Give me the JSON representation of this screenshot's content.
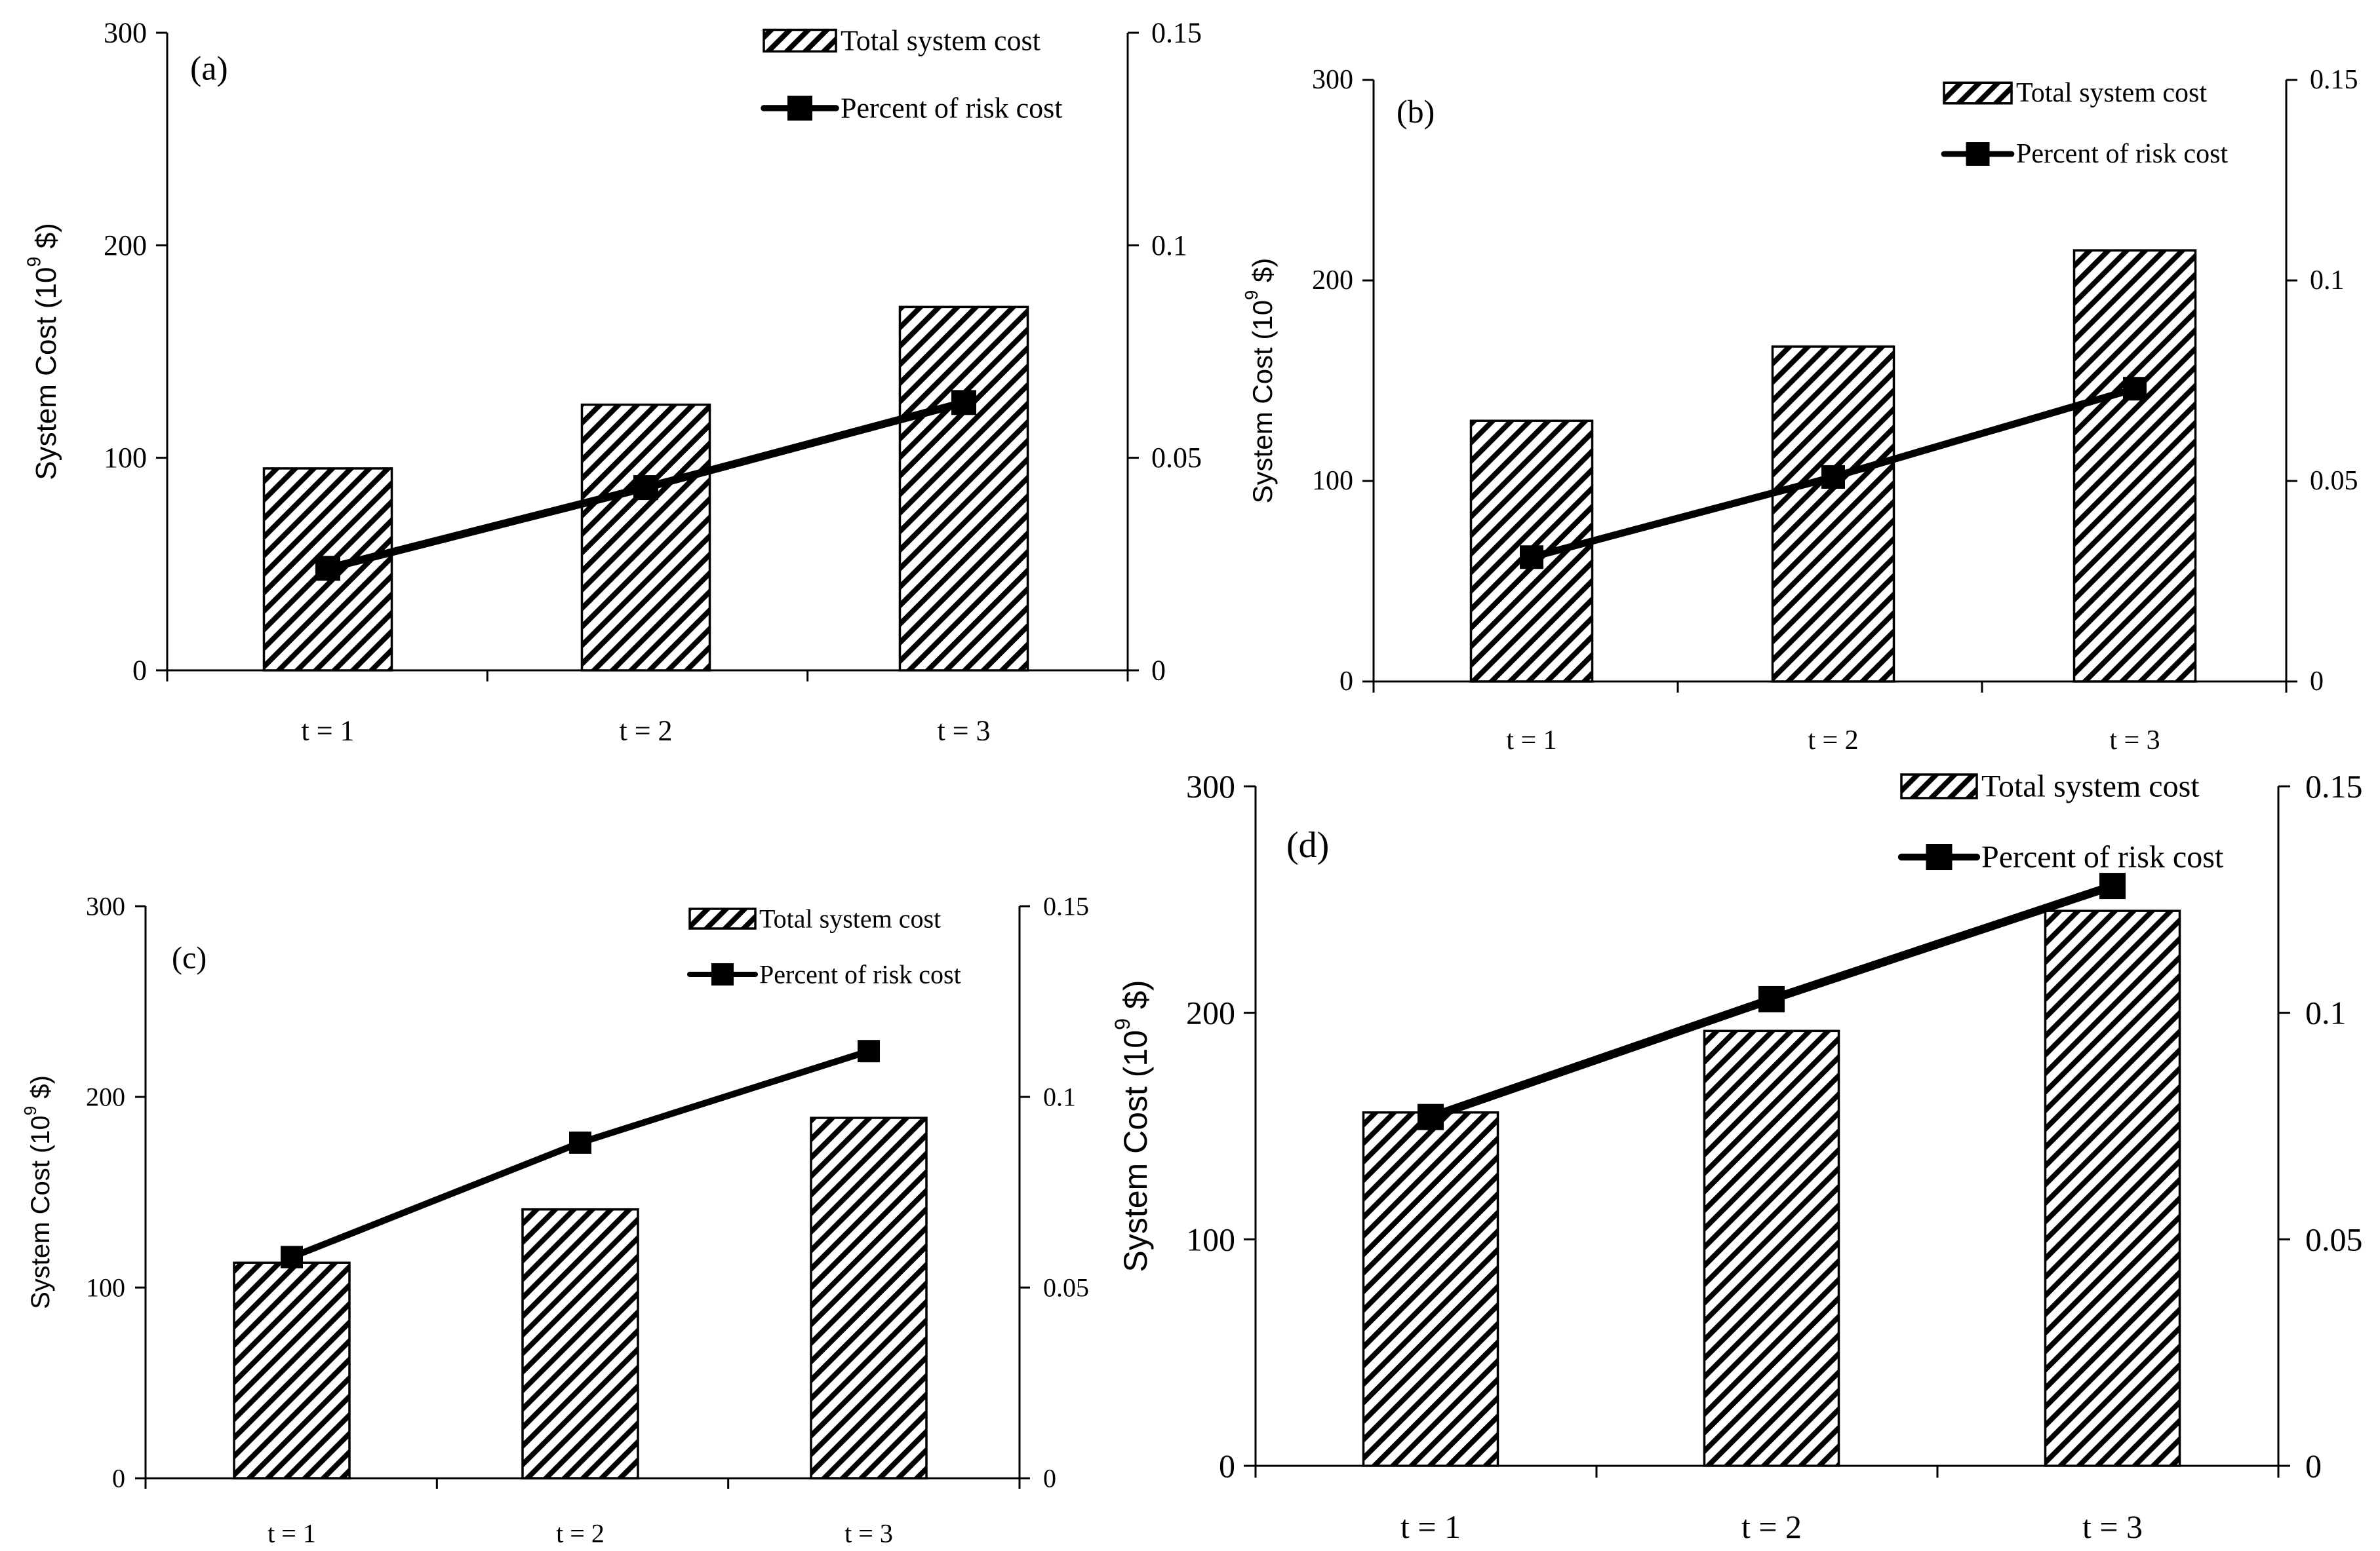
{
  "chart_data": [
    {
      "panel": "(a)",
      "type": "bar+line",
      "categories": [
        "t = 1",
        "t = 2",
        "t = 3"
      ],
      "series": [
        {
          "name": "Total system cost",
          "type": "bar",
          "axis": "left",
          "values": [
            95,
            125,
            171
          ]
        },
        {
          "name": "Percent of risk cost",
          "type": "line",
          "axis": "right",
          "values": [
            0.024,
            0.043,
            0.063
          ]
        }
      ],
      "ylabel": "System Cost (10",
      "ylabel_sup": "9",
      "ylabel_tail": " $)",
      "ylim_left": [
        0,
        300
      ],
      "yticks_left": [
        "0",
        "100",
        "200",
        "300"
      ],
      "ylim_right": [
        0,
        0.15
      ],
      "yticks_right": [
        "0",
        "0.05",
        "0.1",
        "0.15"
      ],
      "legend": [
        "Total system cost",
        "Percent of risk cost"
      ],
      "legend_position": "top-right"
    },
    {
      "panel": "(b)",
      "type": "bar+line",
      "categories": [
        "t = 1",
        "t = 2",
        "t = 3"
      ],
      "series": [
        {
          "name": "Total system cost",
          "type": "bar",
          "axis": "left",
          "values": [
            130,
            167,
            215
          ]
        },
        {
          "name": "Percent of risk cost",
          "type": "line",
          "axis": "right",
          "values": [
            0.031,
            0.051,
            0.073
          ]
        }
      ],
      "ylabel": "System Cost (10",
      "ylabel_sup": "9",
      "ylabel_tail": " $)",
      "ylim_left": [
        0,
        300
      ],
      "yticks_left": [
        "0",
        "100",
        "200",
        "300"
      ],
      "ylim_right": [
        0,
        0.15
      ],
      "yticks_right": [
        "0",
        "0.05",
        "0.1",
        "0.15"
      ],
      "legend": [
        "Total system cost",
        "Percent of risk cost"
      ],
      "legend_position": "top-right"
    },
    {
      "panel": "(c)",
      "type": "bar+line",
      "categories": [
        "t = 1",
        "t = 2",
        "t = 3"
      ],
      "series": [
        {
          "name": "Total system cost",
          "type": "bar",
          "axis": "left",
          "values": [
            113,
            141,
            189
          ]
        },
        {
          "name": "Percent of risk cost",
          "type": "line",
          "axis": "right",
          "values": [
            0.058,
            0.088,
            0.112
          ]
        }
      ],
      "ylabel": "System Cost (10",
      "ylabel_sup": "9",
      "ylabel_tail": " $)",
      "ylim_left": [
        0,
        300
      ],
      "yticks_left": [
        "0",
        "100",
        "200",
        "300"
      ],
      "ylim_right": [
        0,
        0.15
      ],
      "yticks_right": [
        "0",
        "0.05",
        "0.1",
        "0.15"
      ],
      "legend": [
        "Total system cost",
        "Percent of risk cost"
      ],
      "legend_position": "top-right"
    },
    {
      "panel": "(d)",
      "type": "bar+line",
      "categories": [
        "t = 1",
        "t = 2",
        "t = 3"
      ],
      "series": [
        {
          "name": "Total system cost",
          "type": "bar",
          "axis": "left",
          "values": [
            156,
            192,
            245
          ]
        },
        {
          "name": "Percent of risk cost",
          "type": "line",
          "axis": "right",
          "values": [
            0.077,
            0.103,
            0.128
          ]
        }
      ],
      "ylabel": "System Cost (10",
      "ylabel_sup": "9",
      "ylabel_tail": " $)",
      "ylim_left": [
        0,
        300
      ],
      "yticks_left": [
        "0",
        "100",
        "200",
        "300"
      ],
      "ylim_right": [
        0,
        0.15
      ],
      "yticks_right": [
        "0",
        "0.05",
        "0.1",
        "0.15"
      ],
      "legend": [
        "Total system cost",
        "Percent of risk cost"
      ],
      "legend_position": "top-right"
    }
  ]
}
